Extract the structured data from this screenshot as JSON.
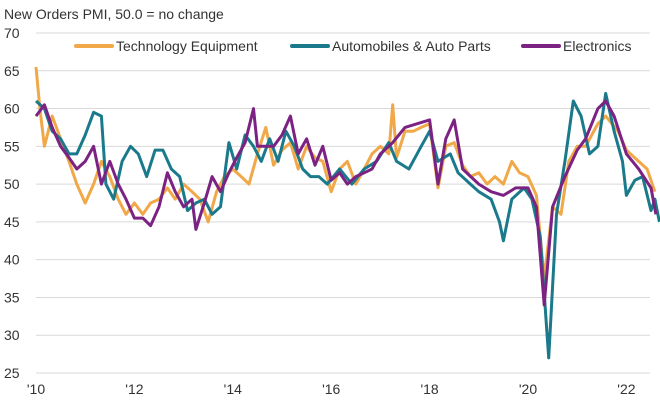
{
  "chart_data": {
    "type": "line",
    "title": "New Orders PMI, 50.0 = no change",
    "xlabel": "",
    "ylabel": "",
    "ylim": [
      25,
      70
    ],
    "xlim": [
      2010,
      2022.6
    ],
    "yticks": [
      "25",
      "30",
      "35",
      "40",
      "45",
      "50",
      "55",
      "60",
      "65",
      "70"
    ],
    "xticks": [
      {
        "value": 2010,
        "label": "'10"
      },
      {
        "value": 2012,
        "label": "'12"
      },
      {
        "value": 2014,
        "label": "'14"
      },
      {
        "value": 2016,
        "label": "'16"
      },
      {
        "value": 2018,
        "label": "'18"
      },
      {
        "value": 2020,
        "label": "'20"
      },
      {
        "value": 2022,
        "label": "'22"
      }
    ],
    "grid": true,
    "legend_position": "top",
    "series": [
      {
        "name": "Technology Equipment",
        "color": "#F0A848",
        "x": [
          2010.0,
          2010.08,
          2010.17,
          2010.33,
          2010.5,
          2010.67,
          2010.83,
          2011.0,
          2011.17,
          2011.33,
          2011.5,
          2011.67,
          2011.83,
          2012.0,
          2012.17,
          2012.33,
          2012.5,
          2012.67,
          2012.83,
          2013.0,
          2013.17,
          2013.33,
          2013.5,
          2013.67,
          2013.83,
          2014.0,
          2014.17,
          2014.33,
          2014.5,
          2014.67,
          2014.83,
          2015.0,
          2015.17,
          2015.33,
          2015.5,
          2015.67,
          2015.83,
          2016.0,
          2016.17,
          2016.33,
          2016.5,
          2016.67,
          2016.83,
          2017.0,
          2017.17,
          2017.25,
          2017.33,
          2017.5,
          2017.67,
          2017.83,
          2018.0,
          2018.17,
          2018.33,
          2018.5,
          2018.67,
          2018.83,
          2019.0,
          2019.17,
          2019.33,
          2019.5,
          2019.67,
          2019.83,
          2020.0,
          2020.17,
          2020.33,
          2020.5,
          2020.67,
          2020.83,
          2021.0,
          2021.17,
          2021.42,
          2021.58,
          2021.83,
          2022.0,
          2022.25,
          2022.42,
          2022.58
        ],
        "y": [
          65.5,
          60,
          55,
          59,
          56,
          53,
          50,
          47.5,
          50,
          53,
          51,
          48,
          46,
          47.5,
          46,
          47.5,
          48,
          49.5,
          48,
          50,
          49,
          48,
          45,
          49,
          51,
          52,
          51,
          50,
          54,
          57.5,
          52.5,
          54.5,
          55.5,
          52,
          55,
          53.5,
          53,
          49,
          52,
          53,
          50,
          52,
          54,
          55,
          54,
          60.5,
          53.5,
          57,
          57,
          57.5,
          58,
          49.5,
          55,
          55.5,
          52.5,
          51,
          51.5,
          50,
          51,
          50,
          53,
          51.5,
          51,
          48.5,
          37.5,
          47,
          46,
          53,
          55,
          55,
          58,
          59,
          57,
          54.5,
          53,
          52,
          49
        ]
      },
      {
        "name": "Automobiles & Auto Parts",
        "color": "#1A7A8C",
        "x": [
          2010.0,
          2010.17,
          2010.33,
          2010.5,
          2010.67,
          2010.83,
          2011.0,
          2011.17,
          2011.33,
          2011.42,
          2011.58,
          2011.75,
          2011.92,
          2012.08,
          2012.25,
          2012.42,
          2012.58,
          2012.75,
          2012.92,
          2013.08,
          2013.25,
          2013.42,
          2013.58,
          2013.75,
          2013.92,
          2014.08,
          2014.25,
          2014.42,
          2014.58,
          2014.75,
          2014.92,
          2015.08,
          2015.25,
          2015.42,
          2015.58,
          2015.75,
          2015.92,
          2016.17,
          2016.42,
          2016.67,
          2016.92,
          2017.17,
          2017.33,
          2017.58,
          2017.83,
          2018.0,
          2018.17,
          2018.42,
          2018.58,
          2018.83,
          2019.0,
          2019.25,
          2019.42,
          2019.5,
          2019.67,
          2019.92,
          2020.08,
          2020.25,
          2020.42,
          2020.58,
          2020.75,
          2020.92,
          2021.08,
          2021.25,
          2021.42,
          2021.58,
          2021.75,
          2021.92,
          2022.0,
          2022.17,
          2022.33,
          2022.5,
          2022.58,
          2022.67
        ],
        "y": [
          61,
          60,
          57,
          56,
          54,
          54,
          56.5,
          59.5,
          59,
          50,
          48,
          53,
          55,
          54,
          51,
          54.5,
          54.5,
          52,
          51,
          46.5,
          47.5,
          48,
          46,
          47,
          55.5,
          52,
          56.5,
          55,
          53,
          56,
          53,
          57,
          55,
          52,
          51,
          51,
          50,
          52,
          50,
          52,
          53,
          55.5,
          53,
          52,
          55,
          57,
          53,
          54,
          51.5,
          50,
          49,
          48,
          45,
          42.5,
          48,
          49.5,
          48,
          43,
          27,
          46,
          53,
          61,
          59,
          54,
          55,
          62,
          57,
          53,
          48.5,
          50.5,
          51,
          46.5,
          48,
          45
        ]
      },
      {
        "name": "Electronics",
        "color": "#7B2283",
        "x": [
          2010.0,
          2010.17,
          2010.33,
          2010.5,
          2010.67,
          2010.83,
          2011.0,
          2011.17,
          2011.33,
          2011.5,
          2011.67,
          2011.83,
          2012.0,
          2012.17,
          2012.33,
          2012.5,
          2012.67,
          2012.83,
          2013.0,
          2013.17,
          2013.25,
          2013.42,
          2013.58,
          2013.75,
          2013.92,
          2014.08,
          2014.25,
          2014.42,
          2014.5,
          2014.67,
          2014.83,
          2015.0,
          2015.17,
          2015.33,
          2015.5,
          2015.67,
          2015.83,
          2016.0,
          2016.17,
          2016.33,
          2016.5,
          2016.67,
          2016.83,
          2017.0,
          2017.25,
          2017.5,
          2017.75,
          2018.0,
          2018.17,
          2018.33,
          2018.5,
          2018.67,
          2019.0,
          2019.25,
          2019.5,
          2019.75,
          2020.0,
          2020.17,
          2020.33,
          2020.5,
          2020.75,
          2021.0,
          2021.17,
          2021.42,
          2021.58,
          2021.75,
          2022.0,
          2022.25,
          2022.5,
          2022.6
        ],
        "y": [
          59,
          60.5,
          57.5,
          55,
          53.5,
          52,
          53,
          55,
          50,
          53,
          50,
          48,
          45.5,
          45.5,
          44.5,
          47,
          51.5,
          49,
          47,
          48,
          44,
          47.5,
          51,
          49,
          51.5,
          53.5,
          55.5,
          60,
          55,
          55,
          55,
          56.5,
          59,
          54,
          56,
          52.5,
          55,
          50.5,
          51.5,
          50,
          51,
          51.5,
          52,
          54,
          55.5,
          57.5,
          58,
          58.5,
          50,
          56,
          58.5,
          52,
          50,
          49,
          48.5,
          49.5,
          49.5,
          47,
          34,
          47,
          51,
          54.5,
          56,
          60,
          61,
          59,
          54,
          52,
          49.5,
          46
        ]
      }
    ]
  }
}
